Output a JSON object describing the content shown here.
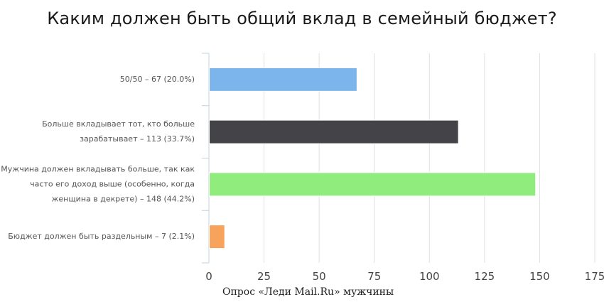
{
  "chart_data": {
    "type": "bar",
    "orientation": "horizontal",
    "title": "Каким должен быть общий вклад в семейный бюджет?",
    "source": "Опрос «Леди Mail.Ru» мужчины",
    "categories": [
      [
        "50/50 – 67 (20.0%)"
      ],
      [
        "Больше вкладывает тот, кто больше",
        "зарабатывает – 113 (33.7%)"
      ],
      [
        "Мужчина должен вкладывать больше, так как",
        "часто его доход выше (особенно, когда",
        "женщина в декрете) – 148 (44.2%)"
      ],
      [
        "Бюджет должен быть раздельным – 7 (2.1%)"
      ]
    ],
    "values": [
      67,
      113,
      148,
      7
    ],
    "colors": [
      "#7cb5ec",
      "#434348",
      "#90ed7d",
      "#f7a35c"
    ],
    "xlim": [
      0,
      175
    ],
    "xticks": [
      0,
      25,
      50,
      75,
      100,
      125,
      150,
      175
    ],
    "grid": true
  }
}
